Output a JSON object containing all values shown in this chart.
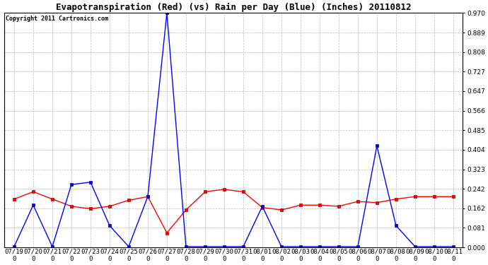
{
  "title": "Evapotranspiration (Red) (vs) Rain per Day (Blue) (Inches) 20110812",
  "copyright": "Copyright 2011 Cartronics.com",
  "x_labels": [
    "07/19\n0",
    "07/20\n0",
    "07/21\n0",
    "07/22\n0",
    "07/23\n0",
    "07/24\n0",
    "07/25\n0",
    "07/26\n0",
    "07/27\n0",
    "07/28\n0",
    "07/29\n0",
    "07/30\n0",
    "07/31\n0",
    "08/01\n0",
    "08/02\n0",
    "08/03\n0",
    "08/04\n0",
    "08/05\n0",
    "08/06\n0",
    "08/07\n0",
    "08/08\n0",
    "08/09\n0",
    "08/10\n0",
    "08/11\n0"
  ],
  "red_data": [
    0.2,
    0.23,
    0.2,
    0.17,
    0.16,
    0.17,
    0.195,
    0.21,
    0.06,
    0.155,
    0.23,
    0.24,
    0.23,
    0.165,
    0.155,
    0.175,
    0.175,
    0.17,
    0.19,
    0.185,
    0.2,
    0.21,
    0.21,
    0.21
  ],
  "blue_data": [
    0.003,
    0.175,
    0.003,
    0.26,
    0.27,
    0.09,
    0.003,
    0.21,
    0.97,
    0.003,
    0.003,
    0.003,
    0.003,
    0.17,
    0.003,
    0.003,
    0.003,
    0.003,
    0.003,
    0.42,
    0.09,
    0.003,
    0.003,
    0.003
  ],
  "ylim": [
    0.0,
    0.97
  ],
  "yticks": [
    0.0,
    0.081,
    0.162,
    0.242,
    0.323,
    0.404,
    0.485,
    0.566,
    0.647,
    0.727,
    0.808,
    0.889,
    0.97
  ],
  "background_color": "#ffffff",
  "plot_bg_color": "#ffffff",
  "grid_color": "#bbbbbb",
  "title_fontsize": 9,
  "tick_fontsize": 6.5,
  "copyright_fontsize": 6
}
